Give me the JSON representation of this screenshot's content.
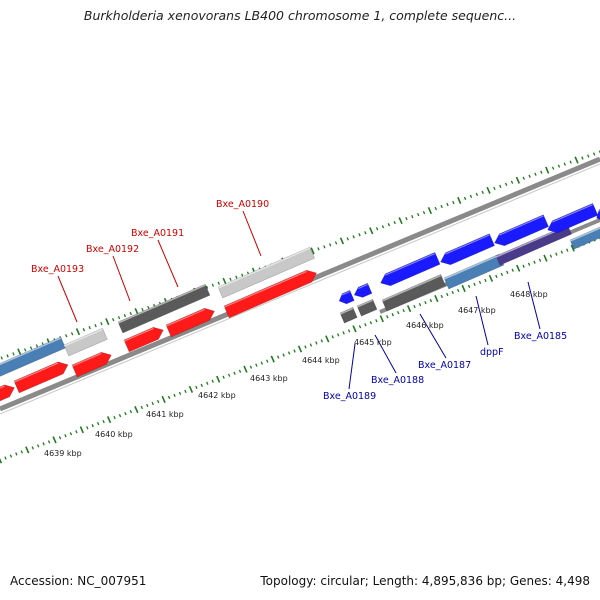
{
  "title": "Burkholderia xenovorans LB400 chromosome 1, complete sequenc...",
  "footer": {
    "accession": "Accession: NC_007951",
    "summary": "Topology: circular; Length: 4,895,836 bp; Genes: 4,498"
  },
  "colors": {
    "forward_gene": "#ff1a1a",
    "reverse_gene": "#1a1aff",
    "forward_label": "#cc0000",
    "reverse_label": "#0000aa",
    "tick": "#1f7a1f",
    "backbone": "#8a8a8a",
    "feature_dark": "#5a5a5a",
    "feature_light": "#c8c8c8",
    "feature_steel": "#4a7fb5",
    "feature_purple": "#4a3a8a"
  },
  "ruler": {
    "labels": [
      "4639 kbp",
      "4640 kbp",
      "4641 kbp",
      "4642 kbp",
      "4643 kbp",
      "4644 kbp",
      "4645 kbp",
      "4646 kbp",
      "4647 kbp",
      "4648 kbp"
    ]
  },
  "genes": {
    "forward": [
      "Bxe_A0193",
      "Bxe_A0192",
      "Bxe_A0191",
      "Bxe_A0190"
    ],
    "reverse": [
      "Bxe_A0189",
      "Bxe_A0188",
      "Bxe_A0187",
      "dppF",
      "Bxe_A0185"
    ]
  }
}
